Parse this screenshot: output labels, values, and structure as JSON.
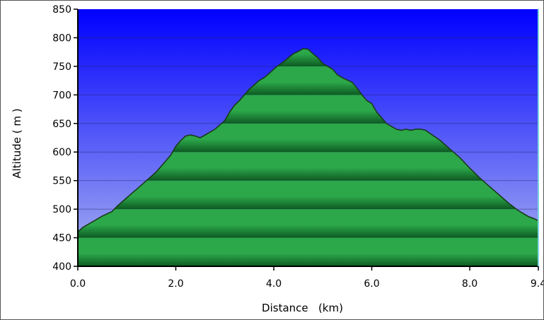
{
  "chart_data": {
    "type": "area",
    "title": "",
    "xlabel": "Distance   (km)",
    "ylabel": "Altitude ( m )",
    "xlim": [
      0,
      9.4
    ],
    "ylim": [
      400,
      850
    ],
    "x_ticks": [
      {
        "value": 0.0,
        "label": "0.0"
      },
      {
        "value": 2.0,
        "label": "2.0"
      },
      {
        "value": 4.0,
        "label": "4.0"
      },
      {
        "value": 6.0,
        "label": "6.0"
      },
      {
        "value": 8.0,
        "label": "8.0"
      },
      {
        "value": 9.4,
        "label": "9.4"
      }
    ],
    "y_ticks": [
      {
        "value": 400,
        "label": "400"
      },
      {
        "value": 450,
        "label": "450"
      },
      {
        "value": 500,
        "label": "500"
      },
      {
        "value": 550,
        "label": "550"
      },
      {
        "value": 600,
        "label": "600"
      },
      {
        "value": 650,
        "label": "650"
      },
      {
        "value": 700,
        "label": "700"
      },
      {
        "value": 750,
        "label": "750"
      },
      {
        "value": 800,
        "label": "800"
      },
      {
        "value": 850,
        "label": "850"
      }
    ],
    "grid": true,
    "colors": {
      "background_top": "#0000ff",
      "background_bottom": "#aab4f0",
      "area_light": "#2ca84a",
      "area_dark": "#0d5a22",
      "outline": "#1a3a1a",
      "gridline": "#222266"
    },
    "series": [
      {
        "x": [
          0.0,
          0.1,
          0.3,
          0.5,
          0.7,
          0.8,
          1.0,
          1.2,
          1.4,
          1.6,
          1.8,
          1.9,
          2.0,
          2.1,
          2.2,
          2.3,
          2.4,
          2.5,
          2.6,
          2.8,
          3.0,
          3.1,
          3.2,
          3.3,
          3.5,
          3.7,
          3.8,
          3.9,
          4.0,
          4.1,
          4.2,
          4.3,
          4.4,
          4.5,
          4.6,
          4.7,
          4.8,
          4.9,
          5.0,
          5.1,
          5.2,
          5.3,
          5.4,
          5.6,
          5.7,
          5.8,
          5.9,
          6.0,
          6.1,
          6.2,
          6.3,
          6.4,
          6.5,
          6.6,
          6.7,
          6.8,
          6.9,
          7.0,
          7.1,
          7.2,
          7.4,
          7.6,
          7.8,
          8.0,
          8.2,
          8.4,
          8.6,
          8.8,
          9.0,
          9.2,
          9.3,
          9.4
        ],
        "y": [
          460,
          468,
          478,
          488,
          496,
          505,
          520,
          535,
          550,
          565,
          585,
          595,
          610,
          620,
          628,
          630,
          628,
          625,
          630,
          640,
          655,
          670,
          682,
          690,
          710,
          725,
          730,
          737,
          745,
          752,
          758,
          765,
          772,
          776,
          781,
          780,
          772,
          765,
          755,
          750,
          745,
          735,
          730,
          722,
          712,
          700,
          690,
          685,
          670,
          660,
          650,
          645,
          640,
          638,
          640,
          638,
          640,
          640,
          638,
          632,
          620,
          605,
          590,
          572,
          555,
          540,
          525,
          510,
          497,
          487,
          484,
          480
        ]
      }
    ]
  }
}
